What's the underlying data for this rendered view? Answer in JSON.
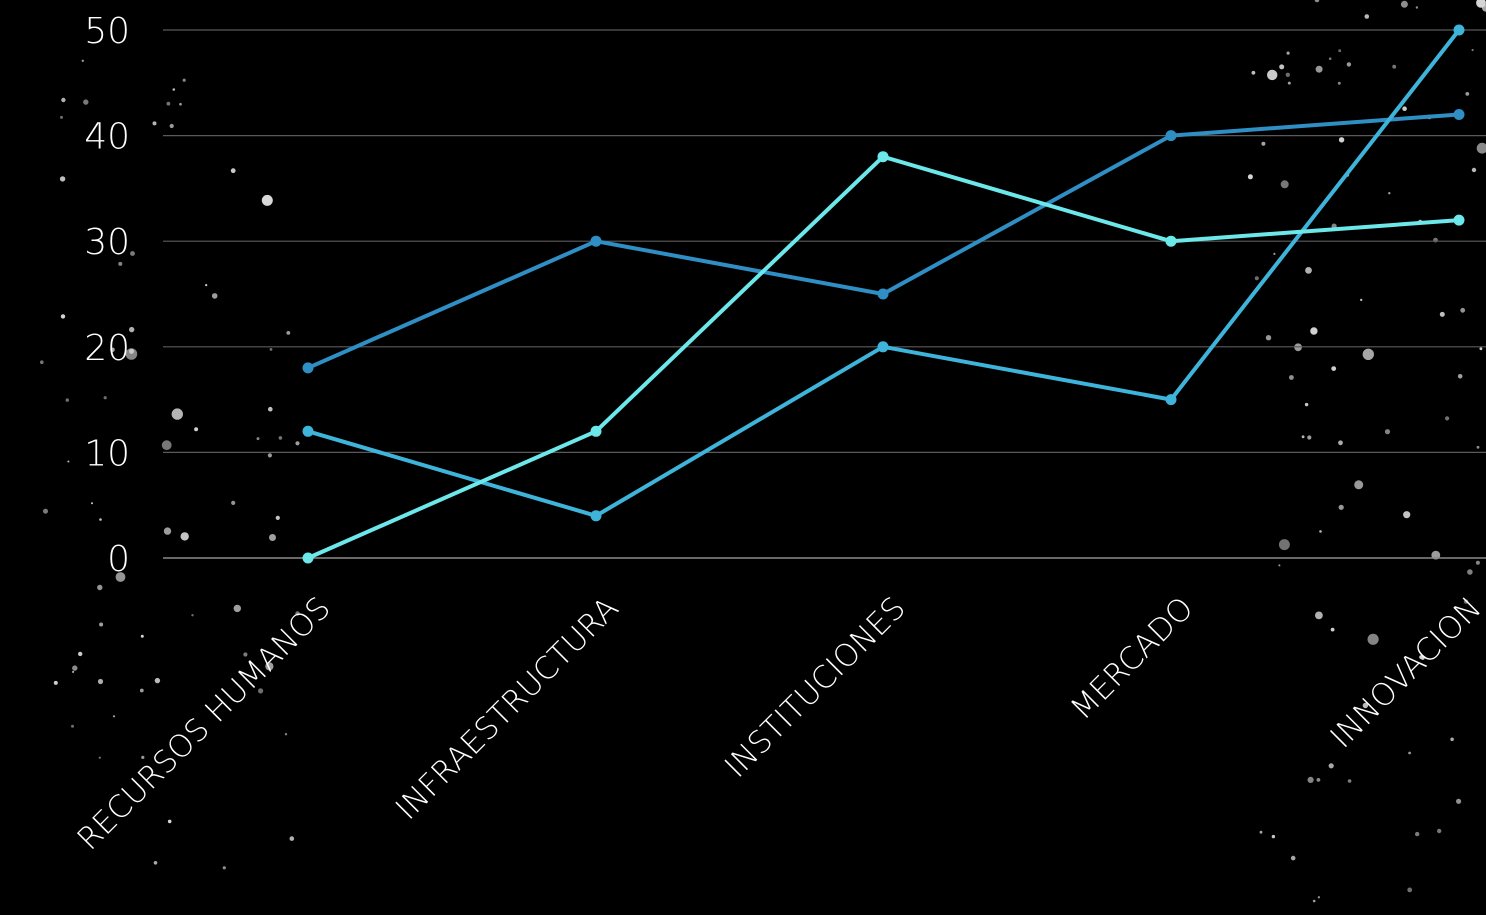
{
  "background_color": "#000000",
  "chart_data": {
    "type": "line",
    "title": "",
    "xlabel": "",
    "ylabel": "",
    "categories": [
      "RECURSOS HUMANOS",
      "INFRAESTRUCTURA",
      "INSTITUCIONES",
      "MERCADO",
      "INNOVACION"
    ],
    "ylim": [
      0,
      50
    ],
    "yticks": [
      "0",
      "10",
      "20",
      "30",
      "40",
      "50"
    ],
    "grid": true,
    "legend": "none",
    "series": [
      {
        "color": "#2f8fc4",
        "values": [
          18,
          30,
          25,
          40,
          42
        ]
      },
      {
        "color": "#3fb4da",
        "values": [
          12,
          4,
          20,
          15,
          50
        ]
      },
      {
        "color": "#6ce7ea",
        "values": [
          0,
          12,
          38,
          30,
          32
        ]
      }
    ]
  }
}
